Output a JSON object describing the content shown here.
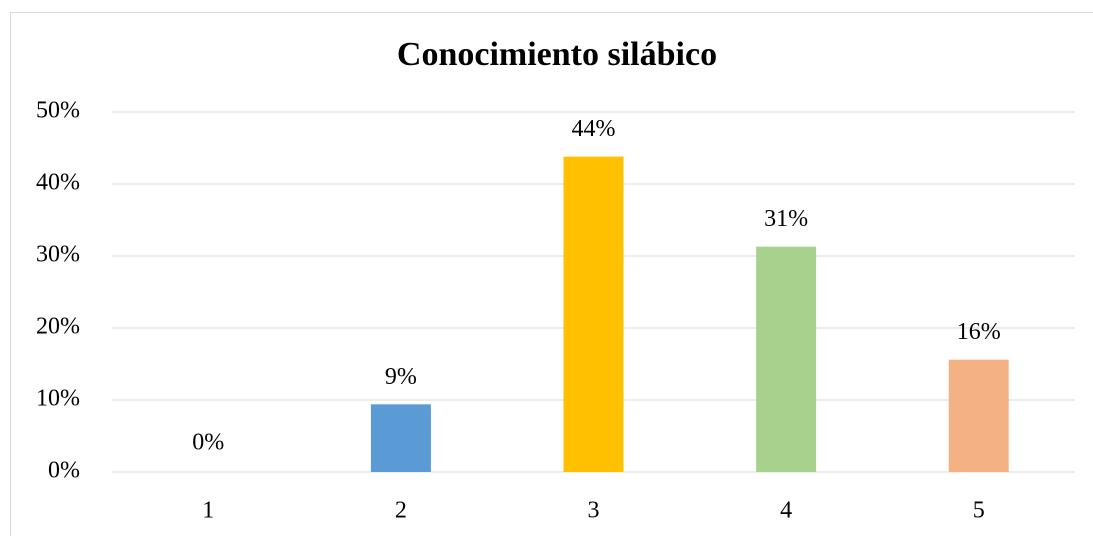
{
  "chart_data": {
    "type": "bar",
    "title": "Conocimiento silábico",
    "categories": [
      "1",
      "2",
      "3",
      "4",
      "5"
    ],
    "values": [
      0,
      9.4,
      43.8,
      31.3,
      15.6
    ],
    "value_labels": [
      "0%",
      "9%",
      "44%",
      "31%",
      "16%"
    ],
    "colors": [
      "#5b9bd5",
      "#5b9bd5",
      "#ffc000",
      "#a9d18e",
      "#f4b183"
    ],
    "ylim": [
      0,
      50
    ],
    "yticks": [
      {
        "value": 0,
        "label": "0%"
      },
      {
        "value": 10,
        "label": "10%"
      },
      {
        "value": 20,
        "label": "20%"
      },
      {
        "value": 30,
        "label": "30%"
      },
      {
        "value": 40,
        "label": "40%"
      },
      {
        "value": 50,
        "label": "50%"
      }
    ],
    "grid": true
  }
}
